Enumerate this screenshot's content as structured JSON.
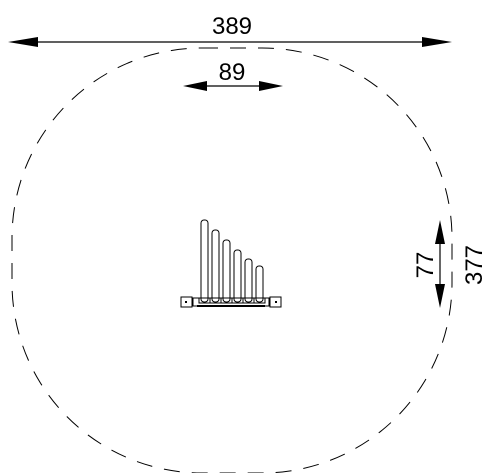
{
  "dimensions": {
    "overall_width": "389",
    "element_width": "89",
    "element_depth": "77",
    "overall_depth": "377"
  },
  "colors": {
    "line": "#000000",
    "background": "#ffffff"
  }
}
